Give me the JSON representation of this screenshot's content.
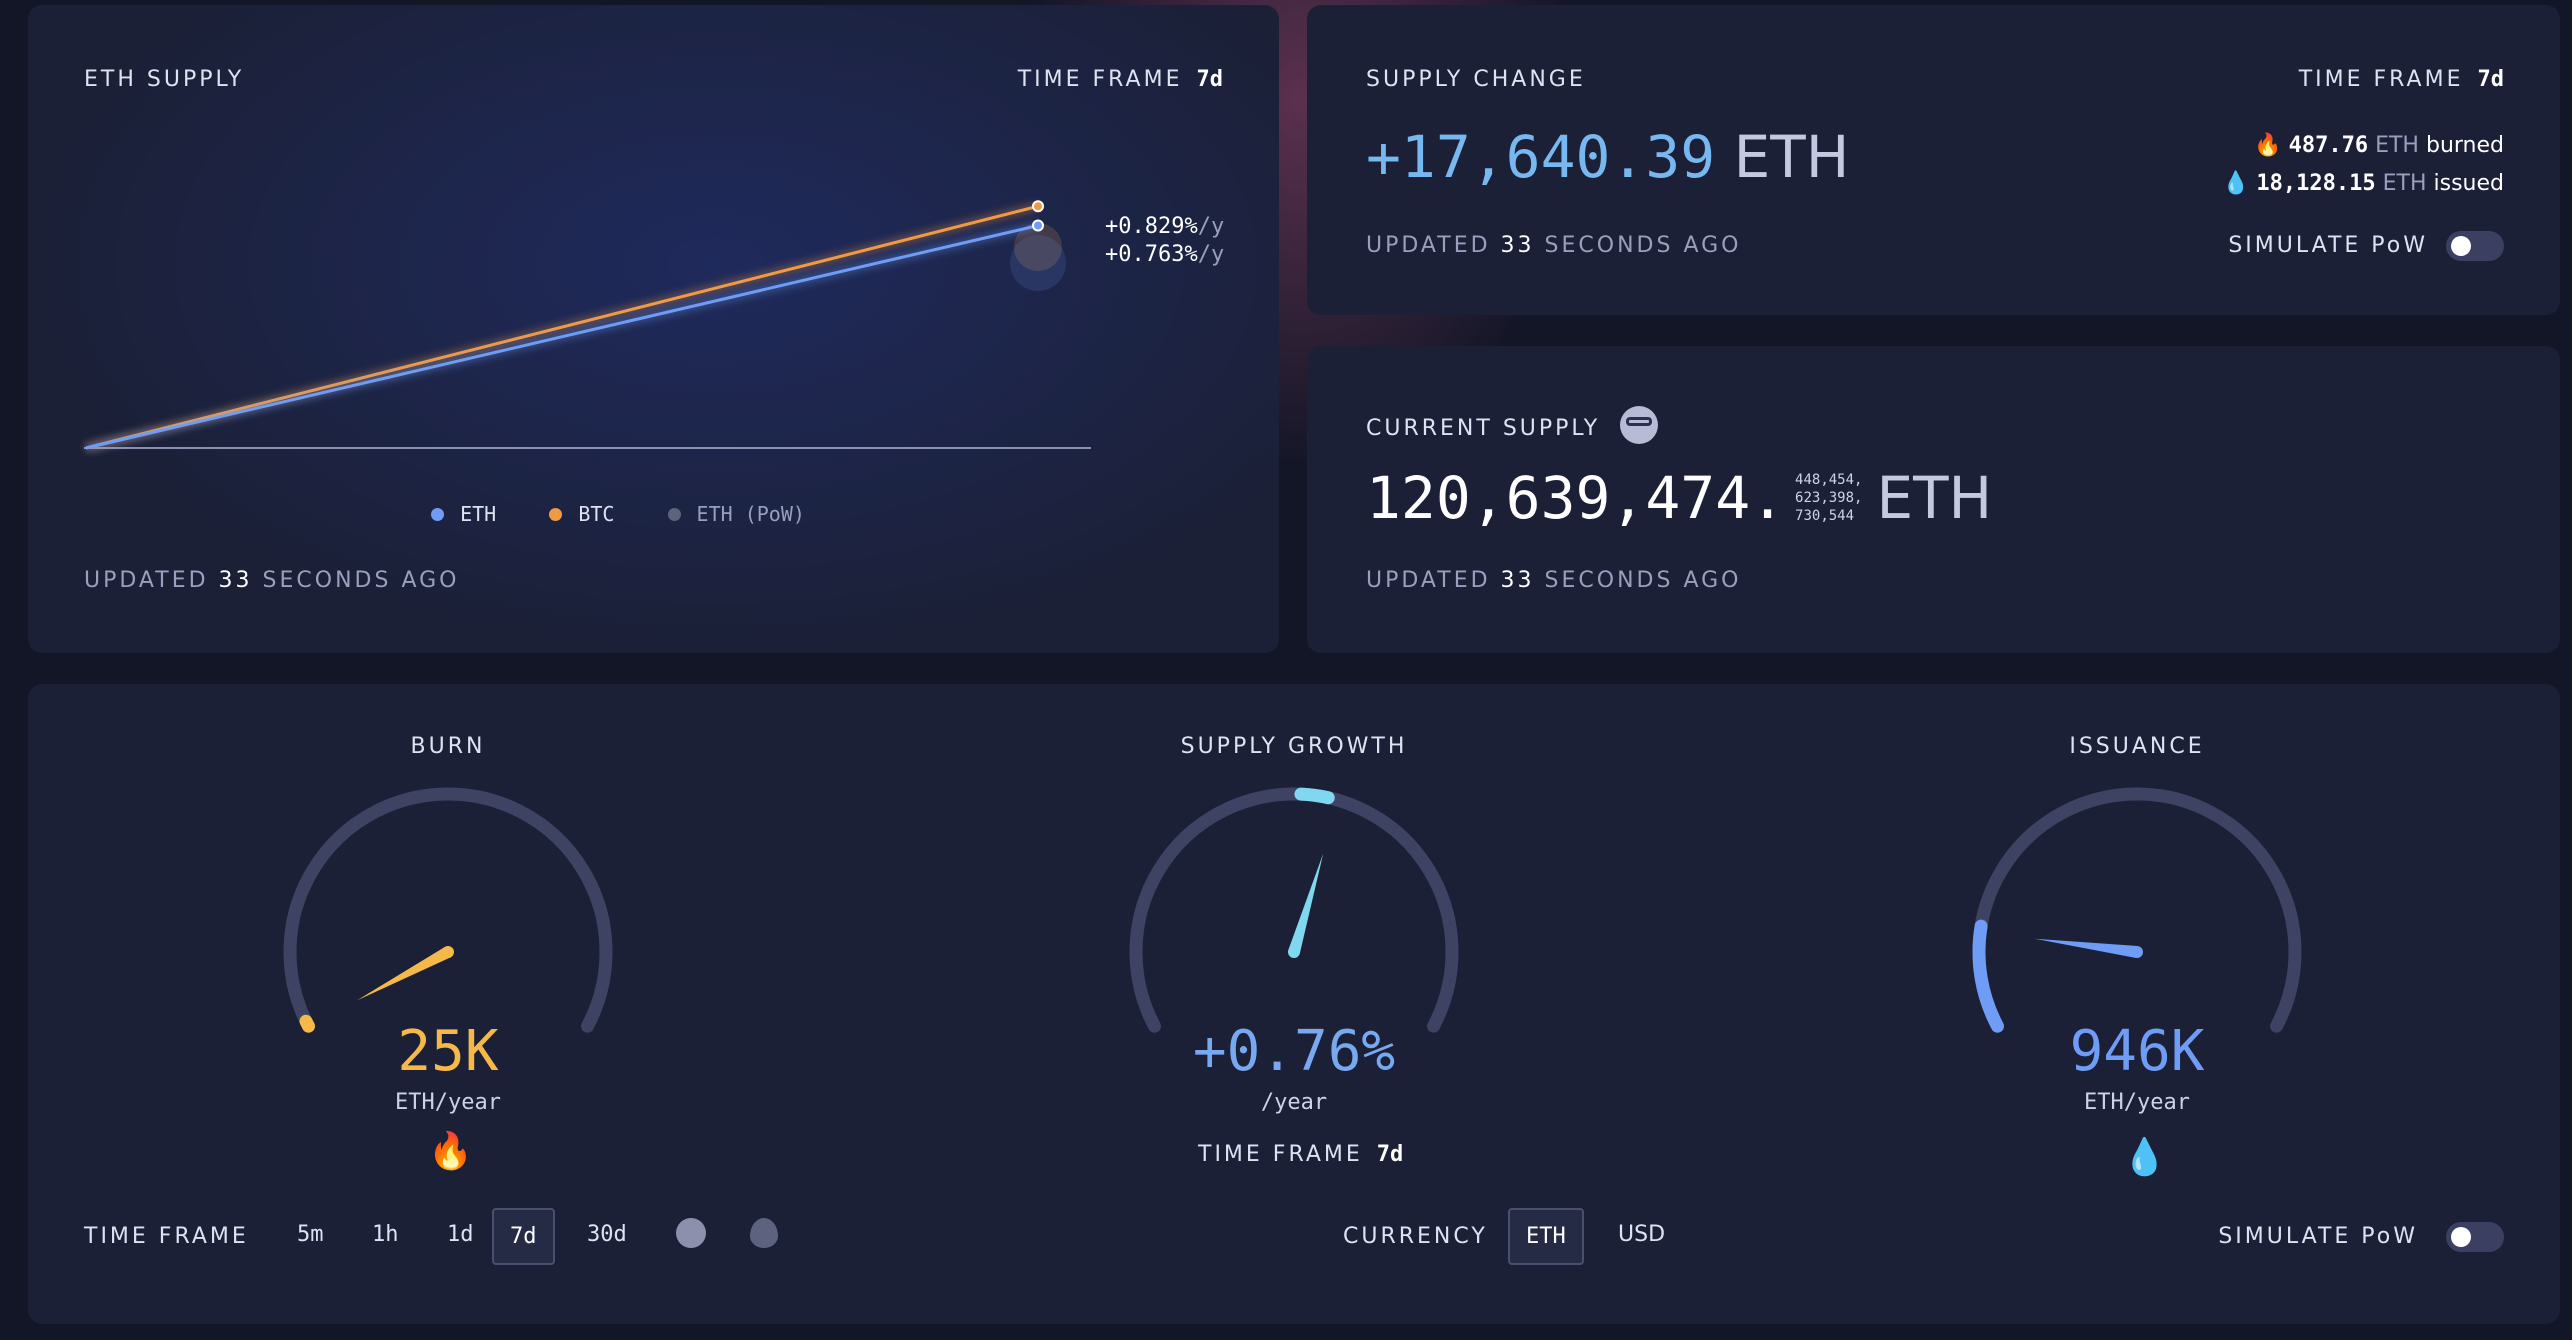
{
  "eth_supply_panel": {
    "title": "ETH SUPPLY",
    "time_frame_label": "TIME FRAME",
    "time_frame_value": "7d",
    "updated_prefix": "UPDATED",
    "updated_value": "33",
    "updated_suffix": "SECONDS AGO",
    "btc_rate": "+0.829%",
    "eth_rate": "+0.763%",
    "rate_unit": "/y",
    "legend": [
      {
        "label": "ETH",
        "color": "#6f9cf5"
      },
      {
        "label": "BTC",
        "color": "#f09a45"
      },
      {
        "label": "ETH (PoW)",
        "color": "#5d627d"
      }
    ]
  },
  "chart_data": {
    "type": "line",
    "title": "ETH SUPPLY",
    "series": [
      {
        "name": "ETH",
        "values": [
          0,
          0.763
        ],
        "color": "#6f9cf5"
      },
      {
        "name": "BTC",
        "values": [
          0,
          0.829
        ],
        "color": "#f09a45"
      }
    ],
    "yunit": "%/y",
    "ylim": [
      0,
      1
    ]
  },
  "supply_change_panel": {
    "title": "SUPPLY CHANGE",
    "time_frame_label": "TIME FRAME",
    "time_frame_value": "7d",
    "value": "+17,640.39",
    "unit": "ETH",
    "burned_value": "487.76",
    "burned_unit": "ETH",
    "burned_label": "burned",
    "issued_value": "18,128.15",
    "issued_unit": "ETH",
    "issued_label": "issued",
    "updated_prefix": "UPDATED",
    "updated_value": "33",
    "updated_suffix": "SECONDS AGO",
    "simulate_pow_label": "SIMULATE PoW",
    "simulate_pow_on": false
  },
  "current_supply_panel": {
    "title": "CURRENT SUPPLY",
    "integer": "120,639,474",
    "decimals_line1": "448,454,",
    "decimals_line2": "623,398,",
    "decimals_line3": "730,544",
    "unit": "ETH",
    "updated_prefix": "UPDATED",
    "updated_value": "33",
    "updated_suffix": "SECONDS AGO"
  },
  "gauges": {
    "burn": {
      "title": "BURN",
      "value": "25K",
      "unit": "ETH/year",
      "level": 0.0,
      "color": "#f5b94a"
    },
    "supply_growth": {
      "title": "SUPPLY GROWTH",
      "value": "+0.76%",
      "unit": "/year",
      "level": 0.57,
      "color": "#7fd8f0",
      "time_frame_label": "TIME FRAME",
      "time_frame_value": "7d"
    },
    "issuance": {
      "title": "ISSUANCE",
      "value": "946K",
      "unit": "ETH/year",
      "level": 0.15,
      "color": "#6f9cf5"
    }
  },
  "bottom_controls": {
    "time_frame_label": "TIME FRAME",
    "time_frames": [
      "5m",
      "1h",
      "1d",
      "7d",
      "30d"
    ],
    "selected_time_frame": "7d",
    "currency_label": "CURRENCY",
    "currencies": [
      "ETH",
      "USD"
    ],
    "selected_currency": "ETH",
    "simulate_pow_label": "SIMULATE PoW",
    "simulate_pow_on": false
  }
}
